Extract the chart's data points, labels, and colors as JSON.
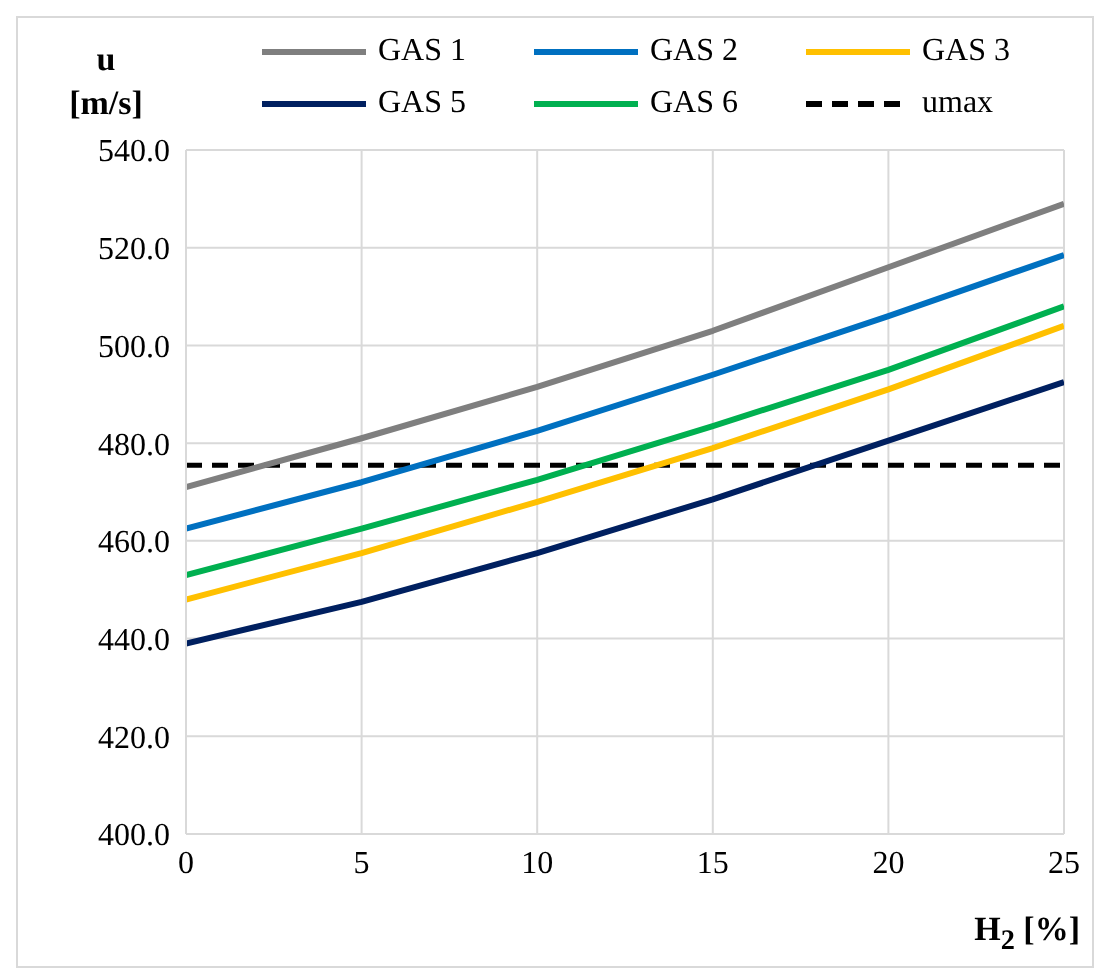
{
  "chart_data": {
    "type": "line",
    "ylabel": "u [m/s]",
    "xlabel": "H$_{2}$ [%]",
    "x": [
      0,
      5,
      10,
      15,
      20,
      25
    ],
    "series": [
      {
        "name": "GAS 1",
        "color": "#7f7f7f",
        "values": [
          471,
          481,
          491.5,
          503,
          516,
          529
        ]
      },
      {
        "name": "GAS 2",
        "color": "#0070c0",
        "values": [
          462.5,
          472,
          482.5,
          494,
          506,
          518.5
        ]
      },
      {
        "name": "GAS 3",
        "color": "#ffc000",
        "values": [
          448,
          457.5,
          468,
          479,
          491,
          504
        ]
      },
      {
        "name": "GAS 5",
        "color": "#002060",
        "values": [
          439,
          447.5,
          457.5,
          468.5,
          480.5,
          492.5
        ]
      },
      {
        "name": "GAS 6",
        "color": "#00b050",
        "values": [
          453,
          462.5,
          472.5,
          483.5,
          495,
          508
        ]
      }
    ],
    "ref_lines": [
      {
        "axis": "y",
        "value": 475.5,
        "label": "umax",
        "color": "#000000",
        "line_style": "dashed"
      }
    ],
    "xlim": [
      0,
      25
    ],
    "xticks": [
      0,
      5,
      10,
      15,
      20,
      25
    ],
    "ylim": [
      400,
      540
    ],
    "yticks": [
      {
        "value": 400,
        "label": "400.0"
      },
      {
        "value": 420,
        "label": "420.0"
      },
      {
        "value": 440,
        "label": "440.0"
      },
      {
        "value": 460,
        "label": "460.0"
      },
      {
        "value": 480,
        "label": "480.0"
      },
      {
        "value": 500,
        "label": "500.0"
      },
      {
        "value": 520,
        "label": "520.0"
      },
      {
        "value": 540,
        "label": "540.0"
      }
    ],
    "grid": true,
    "legend": "top",
    "marker": "none",
    "line_style": "solid"
  }
}
